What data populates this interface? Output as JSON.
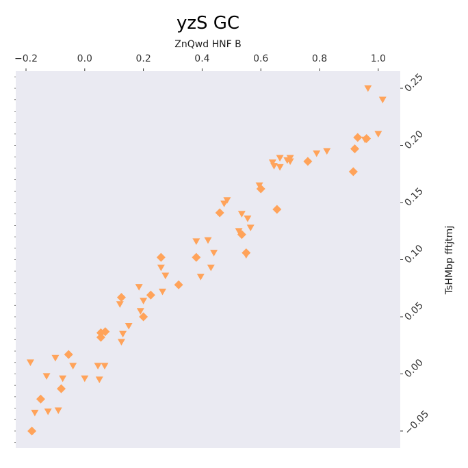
{
  "chart_data": {
    "type": "scatter",
    "title": "yzS GC",
    "xlabel": "ZnQwd HNF B",
    "ylabel": "TsHMbp fftjtmj",
    "x_axis_position": "top",
    "y_axis_position": "right",
    "xlim": [
      -0.235,
      1.075
    ],
    "ylim": [
      -0.065,
      0.265
    ],
    "x_ticks": [
      -0.2,
      0.0,
      0.2,
      0.4,
      0.6,
      0.8,
      1.0
    ],
    "x_tick_labels": [
      "−0.2",
      "0.0",
      "0.2",
      "0.4",
      "0.6",
      "0.8",
      "1.0"
    ],
    "y_ticks": [
      -0.05,
      0.0,
      0.05,
      0.1,
      0.15,
      0.2,
      0.25
    ],
    "y_tick_labels": [
      "−0.05",
      "0.00",
      "0.05",
      "0.10",
      "0.15",
      "0.20",
      "0.25"
    ],
    "grid": false,
    "background": "#eaeaf2",
    "marker_color": "#ffa35a",
    "triangles": [
      [
        -0.185,
        0.01
      ],
      [
        -0.17,
        -0.034
      ],
      [
        -0.13,
        -0.002
      ],
      [
        -0.125,
        -0.033
      ],
      [
        -0.1,
        0.014
      ],
      [
        -0.09,
        -0.032
      ],
      [
        -0.075,
        -0.004
      ],
      [
        -0.04,
        0.007
      ],
      [
        0.0,
        -0.004
      ],
      [
        0.045,
        0.007
      ],
      [
        0.05,
        -0.005
      ],
      [
        0.068,
        0.007
      ],
      [
        0.12,
        0.061
      ],
      [
        0.13,
        0.035
      ],
      [
        0.125,
        0.028
      ],
      [
        0.15,
        0.042
      ],
      [
        0.185,
        0.076
      ],
      [
        0.19,
        0.055
      ],
      [
        0.2,
        0.064
      ],
      [
        0.26,
        0.093
      ],
      [
        0.265,
        0.072
      ],
      [
        0.275,
        0.086
      ],
      [
        0.38,
        0.116
      ],
      [
        0.395,
        0.085
      ],
      [
        0.42,
        0.117
      ],
      [
        0.43,
        0.093
      ],
      [
        0.44,
        0.106
      ],
      [
        0.475,
        0.149
      ],
      [
        0.485,
        0.152
      ],
      [
        0.525,
        0.125
      ],
      [
        0.535,
        0.14
      ],
      [
        0.55,
        0.104
      ],
      [
        0.555,
        0.136
      ],
      [
        0.565,
        0.128
      ],
      [
        0.595,
        0.165
      ],
      [
        0.64,
        0.185
      ],
      [
        0.645,
        0.182
      ],
      [
        0.665,
        0.189
      ],
      [
        0.665,
        0.181
      ],
      [
        0.69,
        0.187
      ],
      [
        0.7,
        0.189
      ],
      [
        0.7,
        0.186
      ],
      [
        0.79,
        0.193
      ],
      [
        0.825,
        0.195
      ],
      [
        0.955,
        0.205
      ],
      [
        0.965,
        0.25
      ],
      [
        1.0,
        0.21
      ],
      [
        1.015,
        0.24
      ]
    ],
    "diamonds": [
      [
        -0.18,
        -0.05
      ],
      [
        -0.15,
        -0.022
      ],
      [
        -0.08,
        -0.013
      ],
      [
        -0.055,
        0.017
      ],
      [
        0.055,
        0.036
      ],
      [
        0.055,
        0.032
      ],
      [
        0.07,
        0.037
      ],
      [
        0.125,
        0.067
      ],
      [
        0.2,
        0.05
      ],
      [
        0.225,
        0.069
      ],
      [
        0.26,
        0.102
      ],
      [
        0.32,
        0.078
      ],
      [
        0.38,
        0.102
      ],
      [
        0.46,
        0.141
      ],
      [
        0.535,
        0.122
      ],
      [
        0.55,
        0.106
      ],
      [
        0.6,
        0.162
      ],
      [
        0.655,
        0.144
      ],
      [
        0.76,
        0.186
      ],
      [
        0.915,
        0.177
      ],
      [
        0.92,
        0.197
      ],
      [
        0.93,
        0.207
      ],
      [
        0.96,
        0.206
      ]
    ]
  }
}
